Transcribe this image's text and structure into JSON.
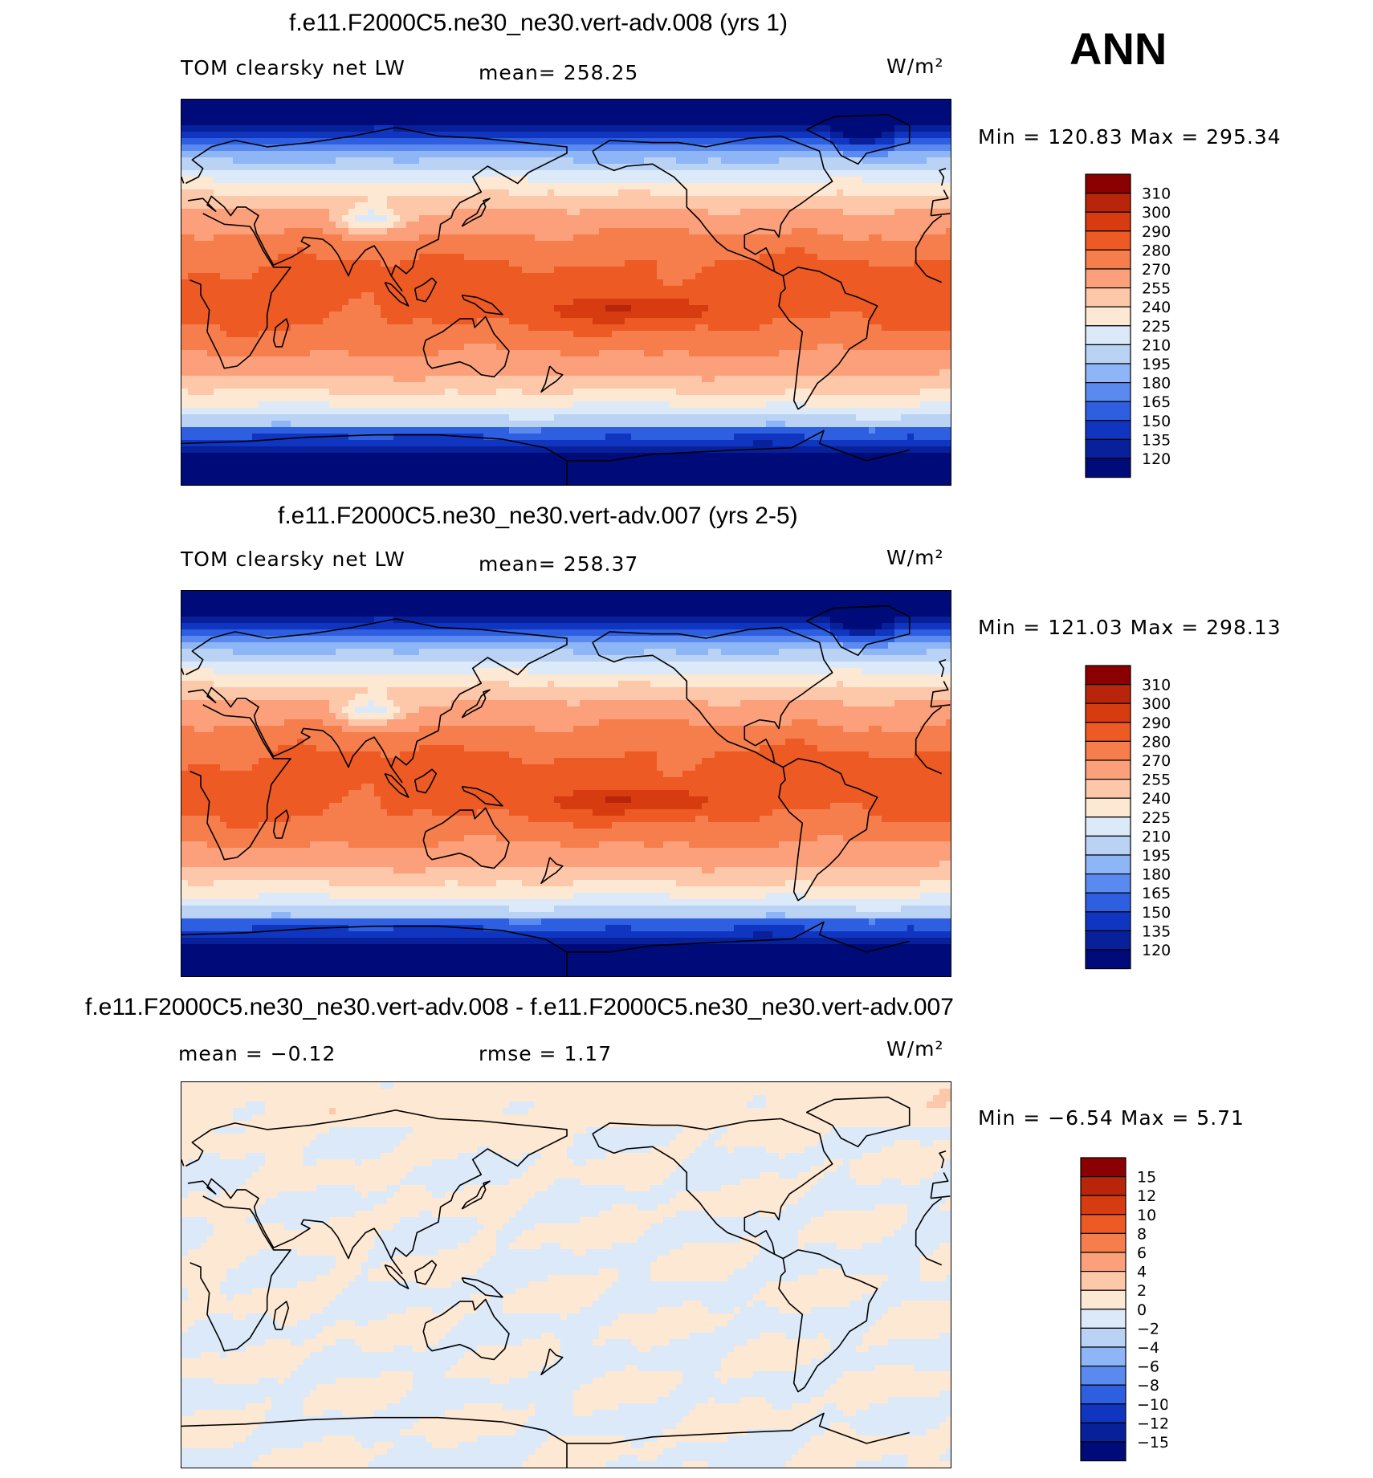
{
  "season": "ANN",
  "panels": [
    {
      "title": "f.e11.F2000C5.ne30_ne30.vert-adv.008 (yrs 1)",
      "left_label": "TOM clearsky net LW",
      "center_label": "mean= 258.25",
      "units": "W/m²",
      "minmax": "Min = 120.83 Max = 295.34",
      "colorbar": {
        "labels": [
          "310",
          "300",
          "290",
          "280",
          "270",
          "255",
          "240",
          "225",
          "210",
          "195",
          "180",
          "165",
          "150",
          "135",
          "120"
        ],
        "colors": [
          "#8b0000",
          "#b8250b",
          "#d73b10",
          "#ee5a24",
          "#f57e4c",
          "#fba07a",
          "#fdc7a9",
          "#fde8d4",
          "#dbe9f8",
          "#bad3f5",
          "#8eb5f5",
          "#5a8af0",
          "#2e5fe0",
          "#1035c0",
          "#08209a",
          "#000b7a"
        ]
      },
      "field": "ltop"
    },
    {
      "title": "f.e11.F2000C5.ne30_ne30.vert-adv.007 (yrs 2-5)",
      "left_label": "TOM clearsky net LW",
      "center_label": "mean= 258.37",
      "units": "W/m²",
      "minmax": "Min = 121.03 Max = 298.13",
      "colorbar": {
        "labels": [
          "310",
          "300",
          "290",
          "280",
          "270",
          "255",
          "240",
          "225",
          "210",
          "195",
          "180",
          "165",
          "150",
          "135",
          "120"
        ],
        "colors": [
          "#8b0000",
          "#b8250b",
          "#d73b10",
          "#ee5a24",
          "#f57e4c",
          "#fba07a",
          "#fdc7a9",
          "#fde8d4",
          "#dbe9f8",
          "#bad3f5",
          "#8eb5f5",
          "#5a8af0",
          "#2e5fe0",
          "#1035c0",
          "#08209a",
          "#000b7a"
        ]
      },
      "field": "ltop"
    },
    {
      "title": "f.e11.F2000C5.ne30_ne30.vert-adv.008 - f.e11.F2000C5.ne30_ne30.vert-adv.007",
      "left_label": "mean =   −0.12",
      "center_label": "rmse =    1.17",
      "units": "W/m²",
      "minmax": "Min =  −6.54 Max =    5.71",
      "colorbar": {
        "labels": [
          "15",
          "12",
          "10",
          "8",
          "6",
          "4",
          "2",
          "0",
          "−2",
          "−4",
          "−6",
          "−8",
          "−10",
          "−12",
          "−15"
        ],
        "colors": [
          "#8b0000",
          "#b8250b",
          "#d73b10",
          "#ee5a24",
          "#f57e4c",
          "#fba07a",
          "#fdc7a9",
          "#fde8d4",
          "#dbe9f8",
          "#bad3f5",
          "#8eb5f5",
          "#5a8af0",
          "#2e5fe0",
          "#1035c0",
          "#08209a",
          "#000b7a"
        ]
      },
      "field": "diff"
    }
  ]
}
